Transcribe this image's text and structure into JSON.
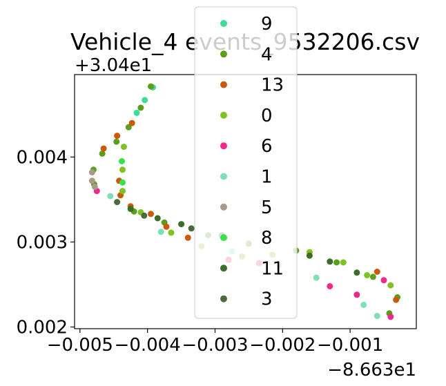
{
  "chart_data": {
    "type": "scatter",
    "title": "Vehicle_4 events_9532206.csv",
    "xlabel": "",
    "ylabel": "",
    "x_offset_text": "−8.663e1",
    "y_offset_text": "+3.04e1",
    "xlim": [
      -0.00508,
      -2e-05
    ],
    "ylim": [
      0.00198,
      0.00497
    ],
    "x_ticks": [
      -0.005,
      -0.004,
      -0.003,
      -0.002,
      -0.001
    ],
    "x_tick_labels": [
      "−0.005",
      "−0.004",
      "−0.003",
      "−0.002",
      "−0.001"
    ],
    "y_ticks": [
      0.002,
      0.003,
      0.004
    ],
    "y_tick_labels": [
      "0.002",
      "0.003",
      "0.004"
    ],
    "grid": false,
    "legend_position": "top-center",
    "series": [
      {
        "name": "9",
        "color": "#3ddc97",
        "points": [
          [
            -0.00392,
            0.00482
          ],
          [
            -0.00404,
            0.00467
          ],
          [
            -0.00416,
            0.00452
          ]
        ]
      },
      {
        "name": "4",
        "color": "#5a9e1a",
        "points": [
          [
            -0.00395,
            0.00483
          ],
          [
            -0.0041,
            0.00458
          ],
          [
            -0.00428,
            0.00435
          ],
          [
            -0.00446,
            0.00418
          ],
          [
            -0.00467,
            0.00404
          ],
          [
            -0.0048,
            0.00385
          ],
          [
            -0.00479,
            0.00368
          ],
          [
            -0.0042,
            0.00336
          ],
          [
            -0.00375,
            0.00323
          ],
          [
            -0.0031,
            0.00308
          ],
          [
            -0.0025,
            0.00298
          ],
          [
            -0.0018,
            0.0029
          ],
          [
            -0.0012,
            0.00276
          ],
          [
            -0.00066,
            0.00259
          ],
          [
            -0.0003,
            0.00235
          ],
          [
            -0.00042,
            0.00216
          ]
        ]
      },
      {
        "name": "13",
        "color": "#c85a0a",
        "points": [
          [
            -0.00423,
            0.0044
          ],
          [
            -0.00445,
            0.00425
          ],
          [
            -0.00465,
            0.0041
          ],
          [
            -0.00442,
            0.00372
          ],
          [
            -0.0044,
            0.00355
          ],
          [
            -0.00425,
            0.00342
          ],
          [
            -0.00395,
            0.00333
          ],
          [
            -0.00372,
            0.00318
          ],
          [
            -0.0034,
            0.00305
          ],
          [
            -0.0006,
            0.00265
          ],
          [
            -0.00032,
            0.00232
          ]
        ]
      },
      {
        "name": "0",
        "color": "#7ec322",
        "points": [
          [
            -0.00435,
            0.00412
          ],
          [
            -0.00437,
            0.00385
          ],
          [
            -0.00437,
            0.0036
          ],
          [
            -0.0041,
            0.00335
          ],
          [
            -0.00365,
            0.00311
          ],
          [
            -0.0032,
            0.00295
          ],
          [
            -0.0026,
            0.00283
          ],
          [
            -0.00215,
            0.00285
          ],
          [
            -0.0016,
            0.00288
          ],
          [
            -0.0011,
            0.00276
          ],
          [
            -0.00075,
            0.00261
          ],
          [
            -0.0004,
            0.00249
          ]
        ]
      },
      {
        "name": "6",
        "color": "#f0288c",
        "points": [
          [
            -0.00475,
            0.0036
          ],
          [
            -0.0028,
            0.00279
          ],
          [
            -0.00235,
            0.00275
          ],
          [
            -0.0013,
            0.00248
          ],
          [
            -0.0009,
            0.00238
          ],
          [
            -0.0005,
            0.00255
          ],
          [
            -0.0004,
            0.00212
          ]
        ]
      },
      {
        "name": "1",
        "color": "#7fe0b4",
        "points": [
          [
            -0.00455,
            0.00354
          ],
          [
            -0.0038,
            0.00312
          ],
          [
            -0.00275,
            0.00289
          ],
          [
            -0.00205,
            0.00273
          ],
          [
            -0.0015,
            0.00258
          ],
          [
            -0.0008,
            0.00226
          ],
          [
            -0.0006,
            0.00213
          ]
        ]
      },
      {
        "name": "5",
        "color": "#a89a8a",
        "points": [
          [
            -0.00482,
            0.00382
          ],
          [
            -0.00482,
            0.00372
          ],
          [
            -0.00478,
            0.00365
          ]
        ]
      },
      {
        "name": "8",
        "color": "#39e04a",
        "points": [
          [
            -0.00438,
            0.00395
          ],
          [
            -0.00437,
            0.0037
          ]
        ]
      },
      {
        "name": "11",
        "color": "#3a6e2a",
        "points": [
          [
            -0.00425,
            0.00339
          ],
          [
            -0.00385,
            0.00328
          ],
          [
            -0.0035,
            0.00321
          ],
          [
            -0.0029,
            0.00308
          ],
          [
            -0.0016,
            0.00284
          ],
          [
            -0.0013,
            0.00277
          ],
          [
            -0.0009,
            0.00264
          ]
        ]
      },
      {
        "name": "3",
        "color": "#4a6a3a",
        "points": [
          [
            -0.00445,
            0.00347
          ],
          [
            -0.00405,
            0.00331
          ],
          [
            -0.00335,
            0.00316
          ]
        ]
      }
    ]
  }
}
